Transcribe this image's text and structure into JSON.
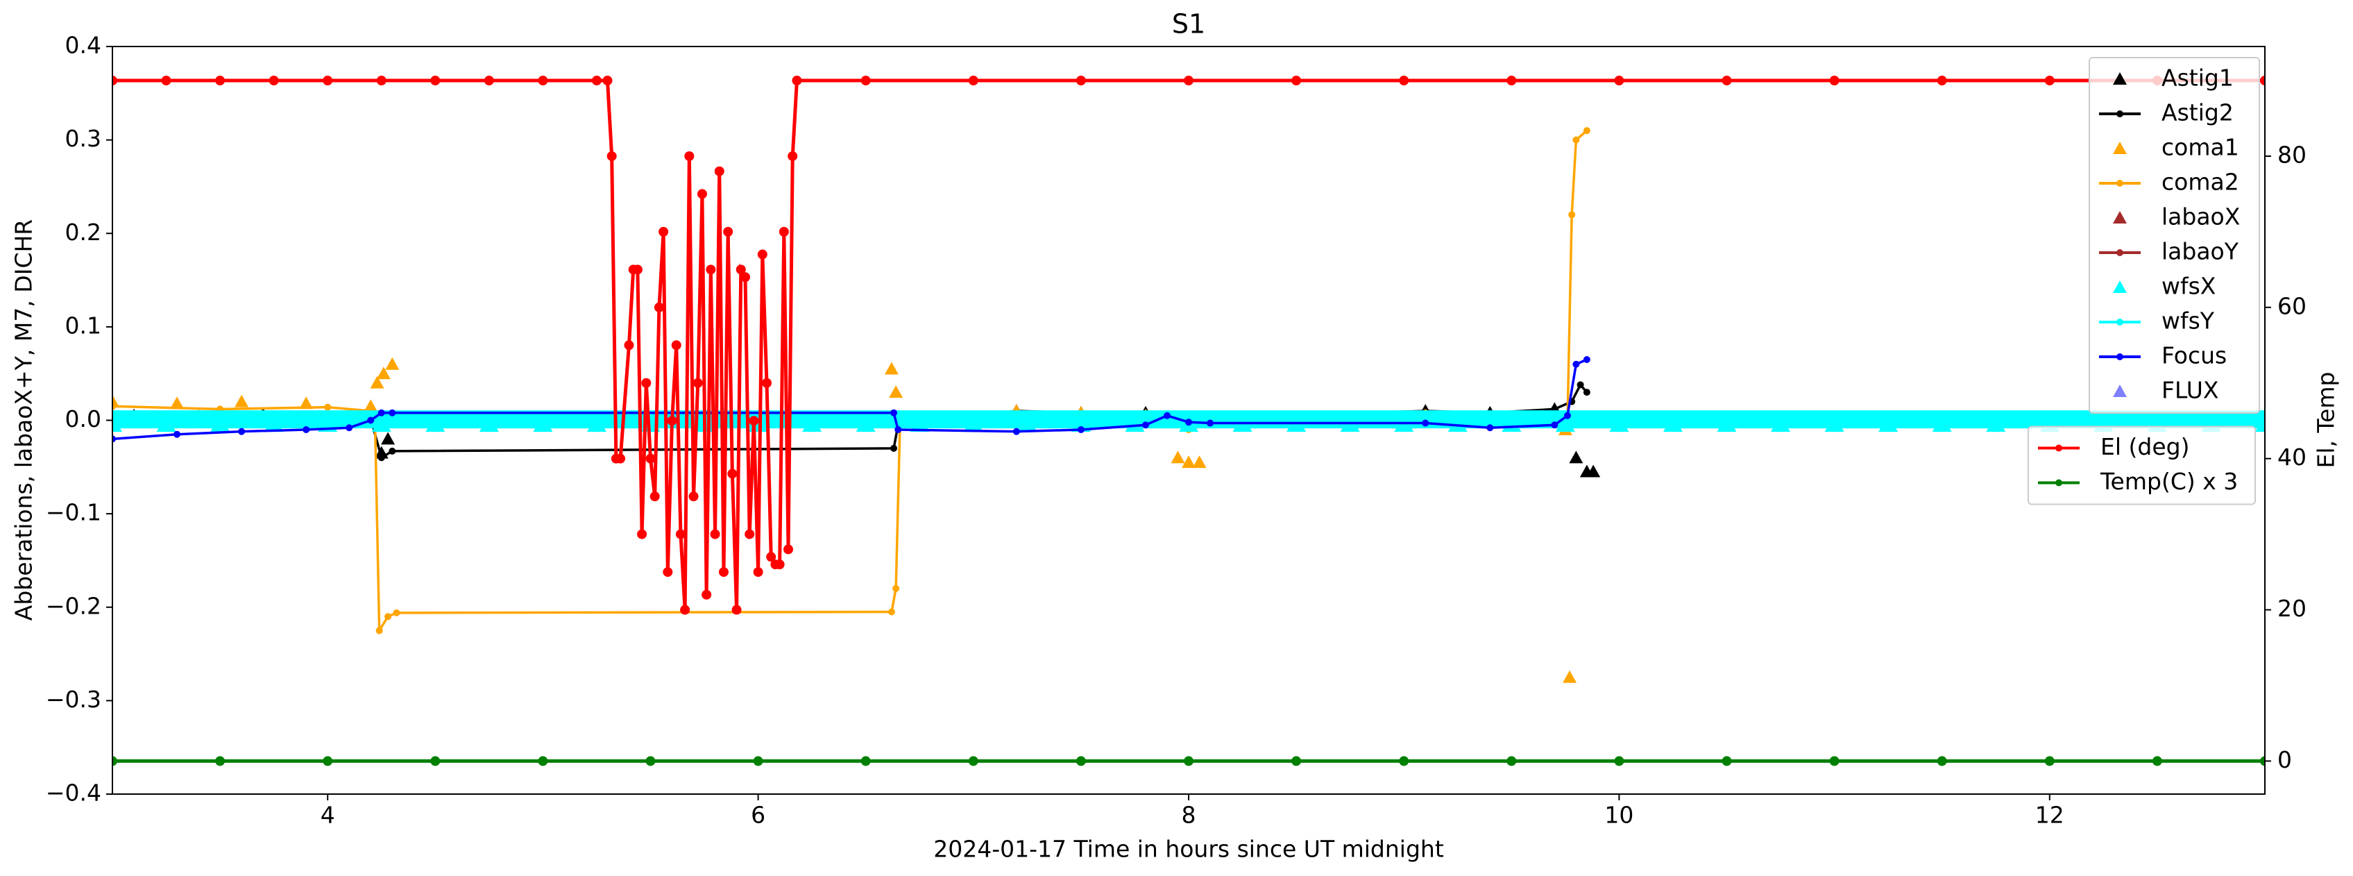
{
  "chart_data": {
    "type": "line",
    "title": "S1",
    "x_label": "2024-01-17  Time in hours since UT midnight",
    "y_label": "Abberations, labaoX+Y, M7, DICHR",
    "y2_label": "El, Temp",
    "xlim": [
      3,
      13
    ],
    "xticks": [
      4,
      6,
      8,
      10,
      12
    ],
    "ylim": [
      -0.4,
      0.4
    ],
    "yticks": [
      {
        "value": -0.4,
        "label": "−0.4"
      },
      {
        "value": -0.3,
        "label": "−0.3"
      },
      {
        "value": -0.2,
        "label": "−0.2"
      },
      {
        "value": -0.1,
        "label": "−0.1"
      },
      {
        "value": 0,
        "label": "0.0"
      },
      0.1,
      0.2,
      0.3,
      0.4
    ],
    "y2lim": [
      -4.37,
      94.5
    ],
    "y2ticks": [
      0,
      20,
      40,
      60,
      80
    ],
    "grid": false,
    "legend_loc": "upper right",
    "legend2_loc": "center right",
    "series": [
      {
        "name": "Astig1",
        "color": "#000000",
        "style": "markers",
        "x": [
          3.1,
          3.4,
          3.7,
          4.0,
          4.2,
          4.25,
          4.28,
          7.2,
          7.5,
          7.8,
          8.05,
          9.1,
          9.4,
          9.7,
          9.8,
          9.85,
          9.88
        ],
        "values": [
          0.005,
          0.004,
          0.006,
          0.004,
          0.003,
          -0.035,
          -0.02,
          0.01,
          0.008,
          0.008,
          0.0,
          0.01,
          0.008,
          0.012,
          -0.04,
          -0.055,
          -0.055
        ]
      },
      {
        "name": "Astig2",
        "color": "#000000",
        "style": "line",
        "x": [
          3.0,
          3.5,
          4.0,
          4.2,
          4.25,
          4.3,
          6.63,
          6.65,
          7.2,
          7.5,
          7.8,
          8.0,
          8.1,
          9.1,
          9.4,
          9.7,
          9.78,
          9.82,
          9.85
        ],
        "values": [
          0.005,
          0.004,
          0.003,
          0.002,
          -0.04,
          -0.033,
          -0.03,
          -0.005,
          0.01,
          0.008,
          0.008,
          -0.005,
          0.003,
          0.01,
          0.008,
          0.012,
          0.02,
          0.038,
          0.03
        ]
      },
      {
        "name": "coma1",
        "color": "#ffa500",
        "style": "markers",
        "x": [
          3.0,
          3.3,
          3.6,
          3.9,
          4.2,
          4.23,
          4.26,
          4.3,
          6.62,
          6.64,
          7.2,
          7.5,
          7.8,
          7.95,
          8.0,
          8.05,
          9.75,
          9.77
        ],
        "values": [
          0.02,
          0.018,
          0.02,
          0.018,
          0.015,
          0.04,
          0.05,
          0.06,
          0.055,
          0.03,
          0.01,
          0.008,
          0.005,
          -0.04,
          -0.045,
          -0.045,
          -0.01,
          -0.275
        ]
      },
      {
        "name": "coma2",
        "color": "#ffa500",
        "style": "line",
        "x": [
          3.0,
          3.5,
          4.0,
          4.2,
          4.22,
          4.24,
          4.28,
          4.32,
          6.62,
          6.64,
          6.66,
          7.2,
          7.5,
          7.8,
          8.0,
          8.1,
          9.1,
          9.4,
          9.7,
          9.76,
          9.78,
          9.8,
          9.85
        ],
        "values": [
          0.015,
          0.012,
          0.014,
          0.01,
          0.0,
          -0.225,
          -0.21,
          -0.206,
          -0.205,
          -0.18,
          0.005,
          0.008,
          0.006,
          0.004,
          -0.01,
          -0.004,
          0.008,
          0.006,
          0.004,
          0.0,
          0.22,
          0.3,
          0.31
        ]
      },
      {
        "name": "labaoX",
        "color": "#a52a2a",
        "style": "markers",
        "x": [],
        "values": []
      },
      {
        "name": "labaoY",
        "color": "#a52a2a",
        "style": "line",
        "x": [],
        "values": []
      },
      {
        "name": "wfsX",
        "color": "#00ffff",
        "style": "markers",
        "x": [
          3,
          3.25,
          3.5,
          3.75,
          4,
          4.25,
          4.5,
          4.75,
          5,
          5.25,
          5.5,
          5.75,
          6,
          6.25,
          6.5,
          6.75,
          7,
          7.25,
          7.5,
          7.75,
          8,
          8.25,
          8.5,
          8.75,
          9,
          9.25,
          9.5,
          9.75,
          10,
          10.25,
          10.5,
          10.75,
          11,
          11.25,
          11.5,
          11.75,
          12,
          12.25,
          12.5,
          12.75,
          13
        ],
        "values": [
          -0.004,
          -0.004,
          -0.004,
          -0.004,
          -0.004,
          -0.004,
          -0.004,
          -0.004,
          -0.004,
          -0.004,
          -0.004,
          -0.004,
          -0.004,
          -0.004,
          -0.004,
          -0.004,
          -0.004,
          -0.004,
          -0.004,
          -0.004,
          -0.004,
          -0.004,
          -0.004,
          -0.004,
          -0.004,
          -0.004,
          -0.004,
          -0.004,
          -0.004,
          -0.004,
          -0.004,
          -0.004,
          -0.004,
          -0.004,
          -0.004,
          -0.004,
          -0.004,
          -0.004,
          -0.004,
          -0.004,
          -0.004
        ]
      },
      {
        "name": "wfsY",
        "color": "#00ffff",
        "style": "line",
        "x": [
          3,
          3.25,
          3.5,
          3.75,
          4,
          4.25,
          4.5,
          4.75,
          5,
          5.25,
          5.5,
          5.75,
          6,
          6.25,
          6.5,
          6.75,
          7,
          7.25,
          7.5,
          7.75,
          8,
          8.25,
          8.5,
          8.75,
          9,
          9.25,
          9.5,
          9.75,
          10,
          10.25,
          10.5,
          10.75,
          11,
          11.25,
          11.5,
          11.75,
          12,
          12.25,
          12.5,
          12.75,
          13
        ],
        "values": [
          0.001,
          0.001,
          0.001,
          0.001,
          0.001,
          0.001,
          0.001,
          0.001,
          0.001,
          0.001,
          0.001,
          0.001,
          0.001,
          0.001,
          0.001,
          0.001,
          0.001,
          0.001,
          0.001,
          0.001,
          0.001,
          0.001,
          0.001,
          0.001,
          0.001,
          0.001,
          0.001,
          0.001,
          0.001,
          0.001,
          0.001,
          0.001,
          0.001,
          0.001,
          0.001,
          0.001,
          0.001,
          0.001,
          0.001,
          0.001,
          0.001
        ]
      },
      {
        "name": "Focus",
        "color": "#0000ff",
        "style": "line",
        "x": [
          3.0,
          3.3,
          3.6,
          3.9,
          4.1,
          4.2,
          4.25,
          4.3,
          6.63,
          6.65,
          7.2,
          7.5,
          7.8,
          7.9,
          8.0,
          8.1,
          9.1,
          9.4,
          9.7,
          9.76,
          9.8,
          9.85
        ],
        "values": [
          -0.02,
          -0.015,
          -0.012,
          -0.01,
          -0.008,
          0.0,
          0.008,
          0.008,
          0.008,
          -0.01,
          -0.012,
          -0.01,
          -0.005,
          0.005,
          -0.002,
          -0.003,
          -0.003,
          -0.008,
          -0.005,
          0.005,
          0.06,
          0.065
        ]
      },
      {
        "name": "FLUX",
        "color": "#7f7fff",
        "style": "markers",
        "x": [],
        "values": []
      },
      {
        "name": "El (deg)",
        "color": "#ff0000",
        "style": "line",
        "axis": "y2",
        "x": [
          3,
          3.25,
          3.5,
          3.75,
          4,
          4.25,
          4.5,
          4.75,
          5,
          5.25,
          5.3,
          5.32,
          5.34,
          5.36,
          5.4,
          5.42,
          5.44,
          5.46,
          5.48,
          5.5,
          5.52,
          5.54,
          5.56,
          5.58,
          5.6,
          5.62,
          5.64,
          5.66,
          5.68,
          5.7,
          5.72,
          5.74,
          5.76,
          5.78,
          5.8,
          5.82,
          5.84,
          5.86,
          5.88,
          5.9,
          5.92,
          5.94,
          5.96,
          5.98,
          6.0,
          6.02,
          6.04,
          6.06,
          6.08,
          6.1,
          6.12,
          6.14,
          6.16,
          6.18,
          6.5,
          7,
          7.5,
          8,
          8.5,
          9,
          9.5,
          10,
          10.5,
          11,
          11.5,
          12,
          12.5,
          13
        ],
        "values": [
          90,
          90,
          90,
          90,
          90,
          90,
          90,
          90,
          90,
          90,
          90,
          80,
          40,
          40,
          55,
          65,
          65,
          30,
          50,
          40,
          35,
          60,
          70,
          25,
          45,
          55,
          30,
          20,
          80,
          35,
          50,
          75,
          22,
          65,
          30,
          78,
          25,
          70,
          38,
          20,
          65,
          64,
          30,
          45,
          25,
          67,
          50,
          27,
          26,
          26,
          70,
          28,
          80,
          90,
          90,
          90,
          90,
          90,
          90,
          90,
          90,
          90,
          90,
          90,
          90,
          90,
          90,
          90
        ]
      },
      {
        "name": "Temp(C) x 3",
        "color": "#008000",
        "style": "line",
        "axis": "y2",
        "x": [
          3,
          3.5,
          4,
          4.5,
          5,
          5.5,
          6,
          6.5,
          7,
          7.5,
          8,
          8.5,
          9,
          9.5,
          10,
          10.5,
          11,
          11.5,
          12,
          12.5,
          13
        ],
        "values": [
          0,
          0,
          0,
          0,
          0,
          0,
          0,
          0,
          0,
          0,
          0,
          0,
          0,
          0,
          0,
          0,
          0,
          0,
          0,
          0,
          0
        ]
      }
    ]
  }
}
